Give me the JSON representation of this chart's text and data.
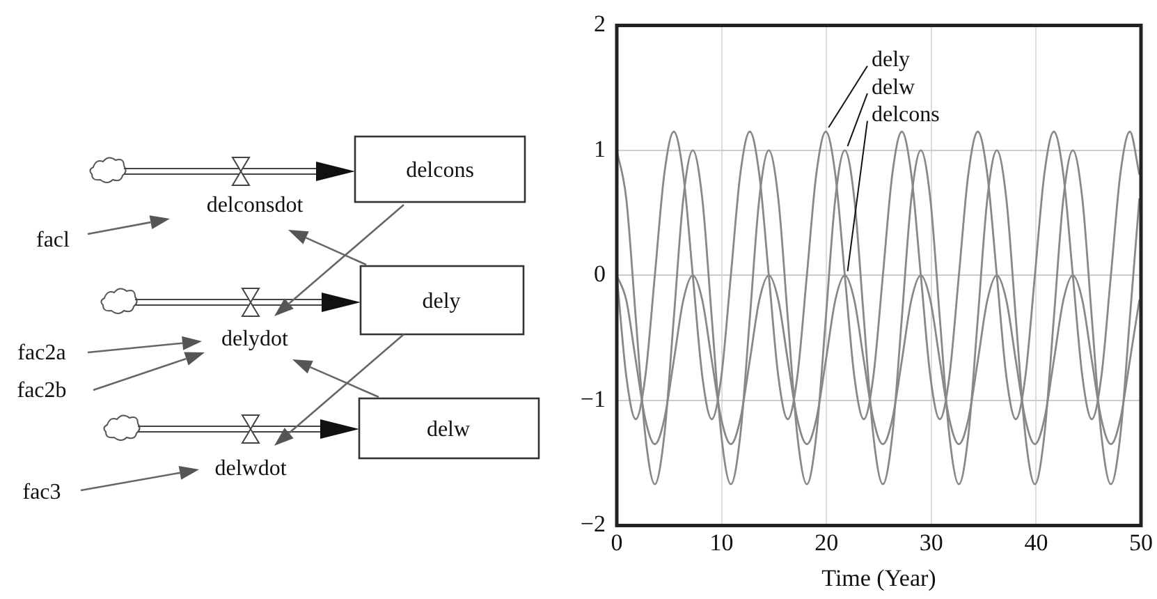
{
  "chart_data": [
    {
      "type": "other",
      "annotations": [
        "delcons",
        "dely",
        "delw",
        "delconsdot",
        "delydot",
        "delwdot",
        "facl",
        "fac2a",
        "fac2b",
        "fac3"
      ]
    },
    {
      "type": "line",
      "xlabel": "Time (Year)",
      "legend": false,
      "grid": true,
      "marker": "none",
      "line_style": "solid",
      "xlim": [
        0,
        50
      ],
      "xticks": [
        0,
        10,
        20,
        30,
        40,
        50
      ],
      "ylim": [
        -2,
        2
      ],
      "yticks": [
        -2,
        -1,
        0,
        1,
        2
      ],
      "x": [
        0,
        0.91,
        1.81,
        2.72,
        3.63,
        4.53,
        5.44,
        6.34,
        7.25,
        8.16,
        9.06,
        9.97,
        10.88,
        11.78,
        12.69,
        13.59,
        14.5,
        15.41,
        16.31,
        17.22,
        18.13,
        19.03,
        19.94,
        20.84,
        21.75,
        22.66,
        23.56,
        24.47,
        25.38,
        26.28,
        27.19,
        28.09,
        29,
        29.91,
        30.81,
        31.72,
        32.63,
        33.53,
        34.44,
        35.34,
        36.25,
        37.16,
        38.06,
        38.97,
        39.88,
        40.78,
        41.69,
        42.59,
        43.5,
        44.41,
        45.31,
        46.22,
        47.13,
        48.03,
        48.94,
        49.84
      ],
      "series": [
        {
          "name": "dely",
          "color": "#888888",
          "values": [
            0,
            -0.81,
            -1.15,
            -0.81,
            0,
            0.81,
            1.15,
            0.81,
            0,
            -0.81,
            -1.15,
            -0.81,
            0,
            0.81,
            1.15,
            0.81,
            0,
            -0.81,
            -1.15,
            -0.81,
            0,
            0.81,
            1.15,
            0.81,
            0,
            -0.81,
            -1.15,
            -0.81,
            0,
            0.81,
            1.15,
            0.81,
            0,
            -0.81,
            -1.15,
            -0.81,
            0,
            0.81,
            1.15,
            0.81,
            0,
            -0.81,
            -1.15,
            -0.81,
            0,
            0.81,
            1.15,
            0.81,
            0,
            -0.81,
            -1.15,
            -0.81,
            0,
            0.81,
            1.15,
            0.81
          ]
        },
        {
          "name": "delw",
          "color": "#888888",
          "values": [
            1,
            0.61,
            -0.34,
            -1.28,
            -1.67,
            -1.28,
            -0.34,
            0.61,
            1,
            0.61,
            -0.34,
            -1.28,
            -1.67,
            -1.28,
            -0.34,
            0.61,
            1,
            0.61,
            -0.34,
            -1.28,
            -1.67,
            -1.28,
            -0.34,
            0.61,
            1,
            0.61,
            -0.34,
            -1.28,
            -1.67,
            -1.28,
            -0.34,
            0.61,
            1,
            0.61,
            -0.34,
            -1.28,
            -1.67,
            -1.28,
            -0.34,
            0.61,
            1,
            0.61,
            -0.34,
            -1.28,
            -1.67,
            -1.28,
            -0.34,
            0.61,
            1,
            0.61,
            -0.34,
            -1.28,
            -1.67,
            -1.28,
            -0.34,
            0.61
          ]
        },
        {
          "name": "delcons",
          "color": "#888888",
          "values": [
            0,
            -0.2,
            -0.68,
            -1.15,
            -1.35,
            -1.15,
            -0.68,
            -0.2,
            0,
            -0.2,
            -0.68,
            -1.15,
            -1.35,
            -1.15,
            -0.68,
            -0.2,
            0,
            -0.2,
            -0.68,
            -1.15,
            -1.35,
            -1.15,
            -0.68,
            -0.2,
            0,
            -0.2,
            -0.68,
            -1.15,
            -1.35,
            -1.15,
            -0.68,
            -0.2,
            0,
            -0.2,
            -0.68,
            -1.15,
            -1.35,
            -1.15,
            -0.68,
            -0.2,
            0,
            -0.2,
            -0.68,
            -1.15,
            -1.35,
            -1.15,
            -0.68,
            -0.2,
            0,
            -0.2,
            -0.68,
            -1.15,
            -1.35,
            -1.15,
            -0.68,
            -0.2
          ]
        }
      ]
    }
  ]
}
